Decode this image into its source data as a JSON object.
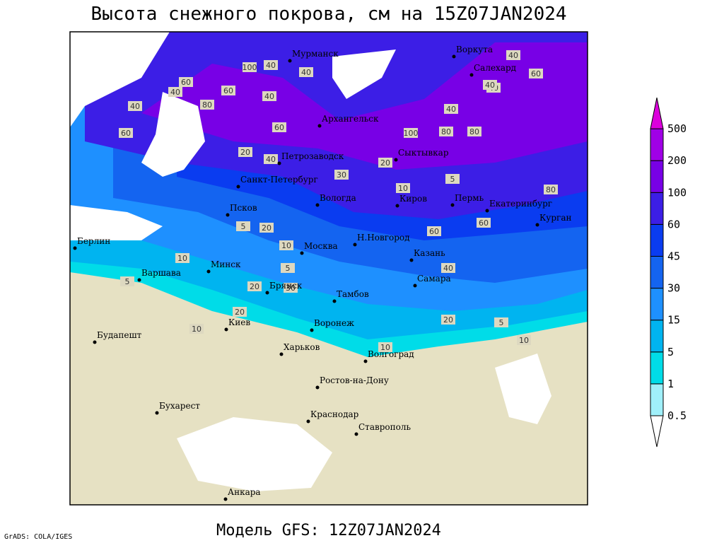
{
  "title": "Высота снежного покрова, см на 15Z07JAN2024",
  "subtitle": "Модель GFS: 12Z07JAN2024",
  "credit": "GrADS: COLA/IGES",
  "cities": [
    "Мурманск",
    "Воркута",
    "Салехард",
    "Архангельск",
    "Петрозаводск",
    "Сыктывкар",
    "Санкт-Петербург",
    "Вологда",
    "Киров",
    "Пермь",
    "Екатеринбург",
    "Псков",
    "Курган",
    "Н.Новгород",
    "Берлин",
    "Москва",
    "Казань",
    "Минск",
    "Варшава",
    "Брянск",
    "Самара",
    "Тамбов",
    "Киев",
    "Воронеж",
    "Будапешт",
    "Харьков",
    "Волгоград",
    "Ростов-на-Дону",
    "Бухарест",
    "Краснодар",
    "Ставрополь",
    "Анкара"
  ],
  "contour_labels": [
    100,
    40,
    40,
    60,
    40,
    80,
    60,
    40,
    40,
    60,
    100,
    80,
    80,
    40,
    40,
    40,
    60,
    40,
    60,
    20,
    40,
    30,
    20,
    10,
    5,
    5,
    20,
    10,
    5,
    10,
    20,
    30,
    20,
    5,
    10,
    10,
    5,
    10,
    20,
    40,
    60,
    60,
    80
  ],
  "legend": {
    "levels": [
      0.5,
      1,
      5,
      15,
      30,
      45,
      60,
      100,
      200,
      500
    ],
    "colors": [
      "#ffffff",
      "#a0f0fa",
      "#00dce8",
      "#00b4f0",
      "#1e90ff",
      "#1464f0",
      "#0a3cf0",
      "#3c1ee6",
      "#7800e6",
      "#a000e6",
      "#dc00dc"
    ]
  }
}
